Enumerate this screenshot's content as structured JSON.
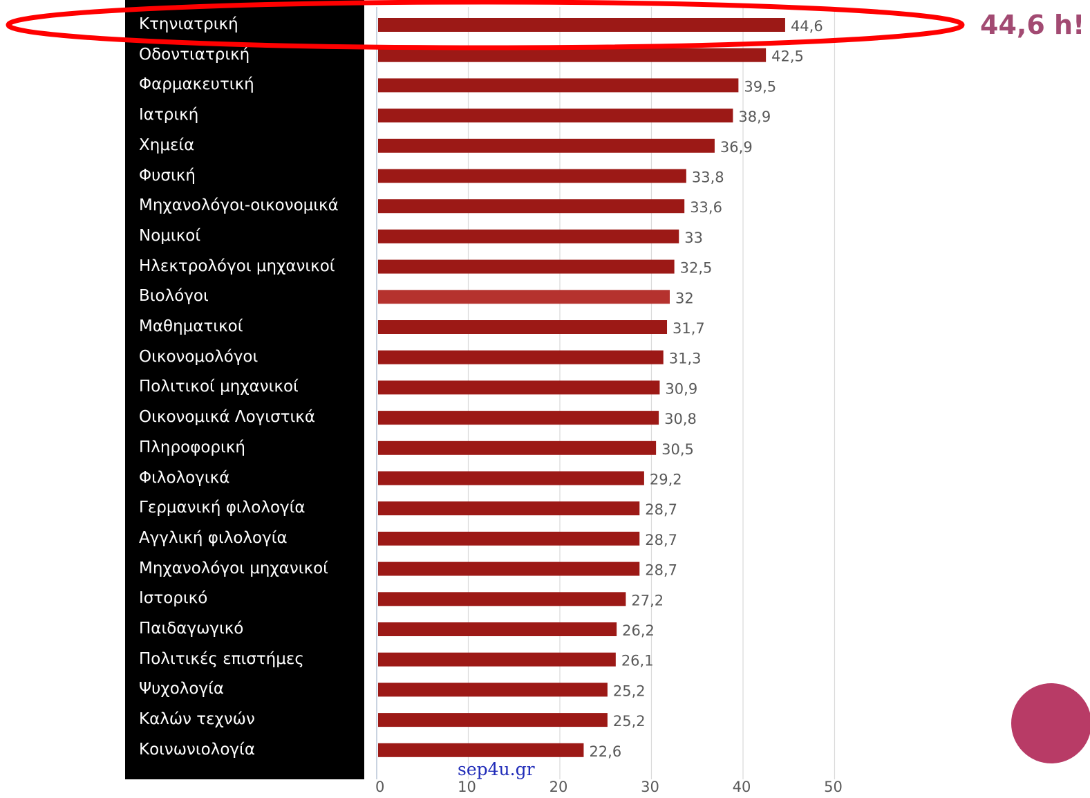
{
  "highlight_text": "44,6 h!",
  "watermark": "sep4u.gr",
  "colors": {
    "bar": "#9c1916",
    "bar_highlight": "#b5322e",
    "ellipse": "#ff0000",
    "highlight_text": "#a24a72",
    "deco_circle": "#b83b66",
    "label_panel": "#000000"
  },
  "chart_data": {
    "type": "bar",
    "orientation": "horizontal",
    "categories": [
      "Κτηνιατρική",
      "Οδοντιατρική",
      "Φαρμακευτική",
      "Ιατρική",
      "Χημεία",
      "Φυσική",
      "Μηχανολόγοι-οικονομικά",
      "Νομικοί",
      "Ηλεκτρολόγοι μηχανικοί",
      "Βιολόγοι",
      "Μαθηματικοί",
      "Οικονομολόγοι",
      "Πολιτικοί μηχανικοί",
      "Οικονομικά Λογιστικά",
      "Πληροφορική",
      "Φιλολογικά",
      "Γερμανική φιλολογία",
      "Αγγλική φιλολογία",
      "Μηχανολόγοι μηχανικοί",
      "Ιστορικό",
      "Παιδαγωγικό",
      "Πολιτικές επιστήμες",
      "Ψυχολογία",
      "Καλών τεχνών",
      "Κοινωνιολογία"
    ],
    "values": [
      44.6,
      42.5,
      39.5,
      38.9,
      36.9,
      33.8,
      33.6,
      33,
      32.5,
      32,
      31.7,
      31.3,
      30.9,
      30.8,
      30.5,
      29.2,
      28.7,
      28.7,
      28.7,
      27.2,
      26.2,
      26.1,
      25.2,
      25.2,
      22.6
    ],
    "value_labels": [
      "44,6",
      "42,5",
      "39,5",
      "38,9",
      "36,9",
      "33,8",
      "33,6",
      "33",
      "32,5",
      "32",
      "31,7",
      "31,3",
      "30,9",
      "30,8",
      "30,5",
      "29,2",
      "28,7",
      "28,7",
      "28,7",
      "27,2",
      "26,2",
      "26,1",
      "25,2",
      "25,2",
      "22,6"
    ],
    "highlighted_category": "Βιολόγοι",
    "circled_category": "Κτηνιατρική",
    "x_ticks": [
      0,
      10,
      20,
      30,
      40,
      50
    ],
    "x_tick_labels": [
      "0",
      "10",
      "20",
      "30",
      "40",
      "50"
    ],
    "xlim": [
      0,
      50
    ],
    "grid": true,
    "title": "",
    "xlabel": "",
    "ylabel": ""
  }
}
